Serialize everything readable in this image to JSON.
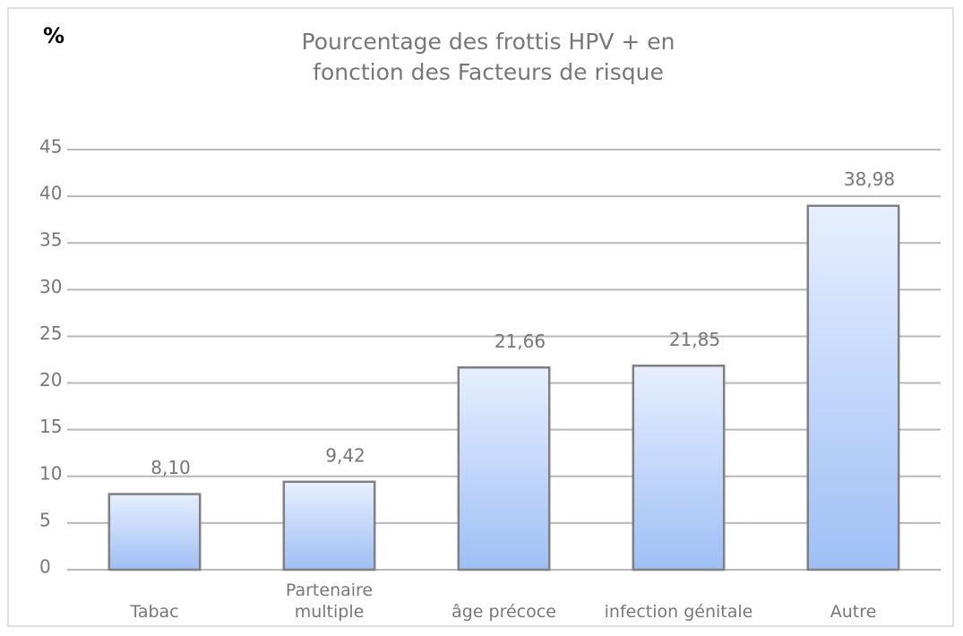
{
  "chart_data": {
    "type": "bar",
    "title": "Pourcentage des frottis HPV + en fonction des Facteurs de risque",
    "y_label": "%",
    "categories": [
      "Tabac",
      "Partenaire multiple",
      "âge précoce",
      "infection génitale",
      "Autre"
    ],
    "values": [
      8.1,
      9.42,
      21.66,
      21.85,
      38.98
    ],
    "value_labels": [
      "8,10",
      "9,42",
      "21,66",
      "21,85",
      "38,98"
    ],
    "color": "#a9c6f7",
    "ylim": [
      0,
      45
    ],
    "yticks": [
      0,
      5,
      10,
      15,
      20,
      25,
      30,
      35,
      40,
      45
    ],
    "grid": true
  }
}
